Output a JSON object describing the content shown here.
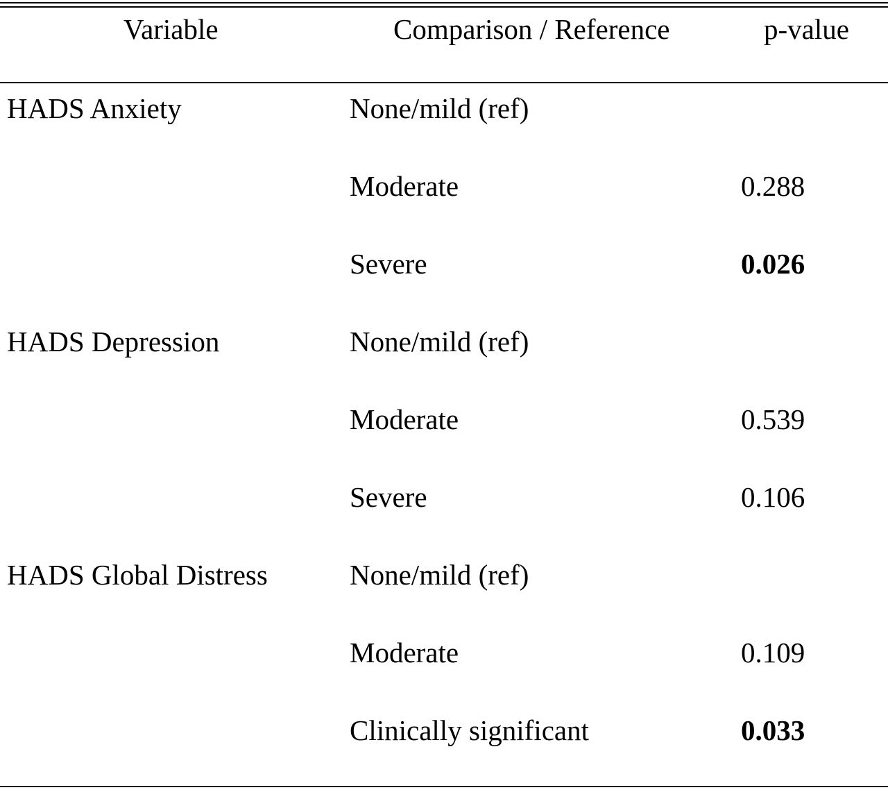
{
  "table": {
    "headers": {
      "variable": "Variable",
      "comparison": "Comparison / Reference",
      "pvalue": "p-value"
    },
    "rows": [
      {
        "variable": "HADS Anxiety",
        "comparison": "None/mild (ref)",
        "pvalue": "",
        "bold": false
      },
      {
        "variable": "",
        "comparison": "Moderate",
        "pvalue": "0.288",
        "bold": false
      },
      {
        "variable": "",
        "comparison": "Severe",
        "pvalue": "0.026",
        "bold": true
      },
      {
        "variable": "HADS Depression",
        "comparison": "None/mild (ref)",
        "pvalue": "",
        "bold": false
      },
      {
        "variable": "",
        "comparison": "Moderate",
        "pvalue": "0.539",
        "bold": false
      },
      {
        "variable": "",
        "comparison": "Severe",
        "pvalue": "0.106",
        "bold": false
      },
      {
        "variable": "HADS Global Distress",
        "comparison": "None/mild (ref)",
        "pvalue": "",
        "bold": false
      },
      {
        "variable": "",
        "comparison": "Moderate",
        "pvalue": "0.109",
        "bold": false
      },
      {
        "variable": "",
        "comparison": "Clinically significant",
        "pvalue": "0.033",
        "bold": true
      }
    ]
  }
}
